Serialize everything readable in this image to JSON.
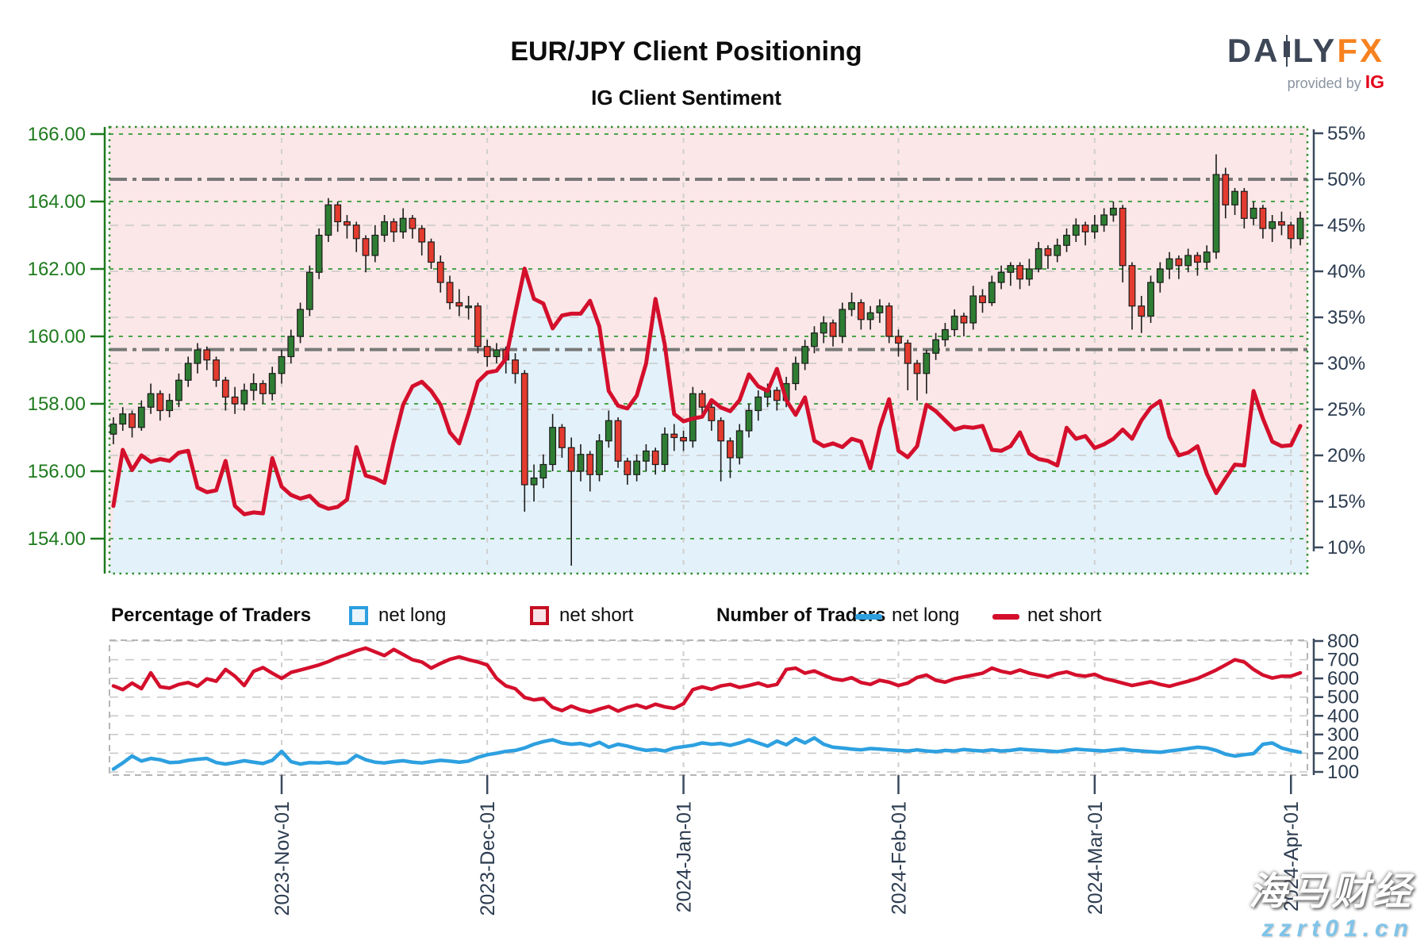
{
  "header": {
    "title": "EUR/JPY Client Positioning",
    "subtitle": "IG Client Sentiment",
    "logo": {
      "brand_part1": "DA",
      "brand_part2": "LY",
      "brand_part3": "FX",
      "provided_by": "provided by",
      "provider": "IG"
    }
  },
  "legend": {
    "percentage_title": "Percentage of Traders",
    "number_title": "Number of Traders",
    "net_long_label": "net long",
    "net_long_label2": "net long",
    "net_short_label": "net short",
    "net_short_label2": "net short"
  },
  "watermark": {
    "line1": "海马财经",
    "line2": "zzrt01.cn"
  },
  "colors": {
    "net_long_line": "#2da0e0",
    "net_short_line": "#d40f2c",
    "candle_up": "#2e7d33",
    "candle_down": "#e33b2f",
    "candle_outline": "#1c1c1c",
    "shade_net_long": "#e3f1fa",
    "shade_net_short": "#fbe7e7",
    "price_axis_green": "#1d7a1d",
    "grid_green": "#4aa44a",
    "pct_axis_navy": "#2c3c50",
    "grid_gray": "#c9c9c9",
    "month_grid": "#cfcfcf",
    "reference_dashdot": "#787878",
    "legend_long_fill": "#e9f4fb",
    "legend_short_fill": "#f8e3e7"
  },
  "chart_data": [
    {
      "type": "candlestick+line",
      "name": "price-with-client-sentiment",
      "title": "IG Client Sentiment",
      "price_axis": {
        "side": "left",
        "ticks": [
          166,
          164,
          162,
          160,
          158,
          156,
          154
        ]
      },
      "percent_axis": {
        "side": "right",
        "unit": "%",
        "ticks": [
          55,
          50,
          45,
          40,
          35,
          30,
          25,
          20,
          15,
          10
        ]
      },
      "reference_levels_percent": [
        50,
        31.5
      ],
      "month_labels": [
        "2023-Nov-01",
        "2023-Dec-01",
        "2024-Jan-01",
        "2024-Feb-01",
        "2024-Mar-01",
        "2024-Apr-01"
      ],
      "candles_ohlc": [
        [
          157.1,
          157.6,
          156.8,
          157.4
        ],
        [
          157.4,
          157.9,
          157.2,
          157.7
        ],
        [
          157.7,
          157.8,
          157.0,
          157.3
        ],
        [
          157.3,
          158.1,
          157.2,
          157.9
        ],
        [
          157.9,
          158.6,
          157.7,
          158.3
        ],
        [
          158.3,
          158.4,
          157.5,
          157.8
        ],
        [
          157.8,
          158.3,
          157.6,
          158.1
        ],
        [
          158.1,
          158.9,
          157.9,
          158.7
        ],
        [
          158.7,
          159.4,
          158.5,
          159.2
        ],
        [
          159.2,
          159.8,
          158.9,
          159.6
        ],
        [
          159.6,
          159.7,
          159.0,
          159.3
        ],
        [
          159.3,
          159.4,
          158.5,
          158.7
        ],
        [
          158.7,
          158.8,
          157.8,
          158.2
        ],
        [
          158.2,
          158.5,
          157.7,
          158.0
        ],
        [
          158.0,
          158.6,
          157.8,
          158.4
        ],
        [
          158.4,
          158.9,
          158.1,
          158.6
        ],
        [
          158.6,
          158.7,
          158.0,
          158.3
        ],
        [
          158.3,
          159.1,
          158.1,
          158.9
        ],
        [
          158.9,
          159.6,
          158.6,
          159.4
        ],
        [
          159.4,
          160.2,
          159.2,
          160.0
        ],
        [
          160.0,
          161.0,
          159.8,
          160.8
        ],
        [
          160.8,
          162.1,
          160.6,
          161.9
        ],
        [
          161.9,
          163.2,
          161.7,
          163.0
        ],
        [
          163.0,
          164.1,
          162.8,
          163.9
        ],
        [
          163.9,
          164.0,
          163.1,
          163.4
        ],
        [
          163.4,
          163.6,
          162.9,
          163.3
        ],
        [
          163.3,
          163.4,
          162.5,
          162.9
        ],
        [
          162.9,
          163.0,
          161.9,
          162.4
        ],
        [
          162.4,
          163.3,
          162.2,
          163.0
        ],
        [
          163.0,
          163.6,
          162.8,
          163.4
        ],
        [
          163.4,
          163.5,
          162.8,
          163.1
        ],
        [
          163.1,
          163.8,
          162.9,
          163.5
        ],
        [
          163.5,
          163.6,
          162.9,
          163.2
        ],
        [
          163.2,
          163.3,
          162.4,
          162.8
        ],
        [
          162.8,
          162.9,
          162.0,
          162.2
        ],
        [
          162.2,
          162.4,
          161.3,
          161.6
        ],
        [
          161.6,
          161.8,
          160.8,
          161.0
        ],
        [
          161.0,
          161.4,
          160.6,
          160.9
        ],
        [
          160.9,
          161.2,
          160.5,
          160.9
        ],
        [
          160.9,
          161.0,
          159.5,
          159.7
        ],
        [
          159.7,
          159.9,
          159.1,
          159.4
        ],
        [
          159.4,
          159.8,
          159.2,
          159.6
        ],
        [
          159.6,
          159.7,
          158.9,
          159.3
        ],
        [
          159.3,
          159.5,
          158.6,
          158.9
        ],
        [
          158.9,
          159.0,
          154.8,
          155.6
        ],
        [
          155.6,
          156.2,
          155.1,
          155.8
        ],
        [
          155.8,
          156.5,
          155.5,
          156.2
        ],
        [
          156.2,
          157.7,
          156.0,
          157.3
        ],
        [
          157.3,
          157.4,
          156.4,
          156.7
        ],
        [
          156.7,
          157.0,
          153.2,
          156.0
        ],
        [
          156.0,
          156.8,
          155.7,
          156.5
        ],
        [
          156.5,
          156.6,
          155.4,
          155.9
        ],
        [
          155.9,
          157.1,
          155.7,
          156.9
        ],
        [
          156.9,
          157.8,
          156.7,
          157.5
        ],
        [
          157.5,
          157.6,
          156.1,
          156.3
        ],
        [
          156.3,
          156.4,
          155.6,
          155.9
        ],
        [
          155.9,
          156.5,
          155.7,
          156.3
        ],
        [
          156.3,
          156.8,
          156.0,
          156.6
        ],
        [
          156.6,
          156.7,
          155.9,
          156.2
        ],
        [
          156.2,
          157.3,
          156.0,
          157.1
        ],
        [
          157.1,
          157.4,
          156.6,
          157.0
        ],
        [
          157.0,
          157.2,
          156.6,
          156.9
        ],
        [
          156.9,
          158.5,
          156.7,
          158.3
        ],
        [
          158.3,
          158.4,
          157.6,
          157.9
        ],
        [
          157.9,
          158.1,
          157.2,
          157.5
        ],
        [
          157.5,
          157.6,
          155.7,
          156.9
        ],
        [
          156.9,
          157.0,
          155.8,
          156.4
        ],
        [
          156.4,
          157.4,
          156.2,
          157.2
        ],
        [
          157.2,
          158.0,
          157.0,
          157.8
        ],
        [
          157.8,
          158.4,
          157.5,
          158.2
        ],
        [
          158.2,
          158.6,
          157.9,
          158.4
        ],
        [
          158.4,
          158.5,
          157.8,
          158.1
        ],
        [
          158.1,
          158.8,
          157.9,
          158.6
        ],
        [
          158.6,
          159.4,
          158.4,
          159.2
        ],
        [
          159.2,
          159.9,
          159.0,
          159.7
        ],
        [
          159.7,
          160.3,
          159.5,
          160.1
        ],
        [
          160.1,
          160.6,
          159.8,
          160.4
        ],
        [
          160.4,
          160.5,
          159.7,
          160.0
        ],
        [
          160.0,
          161.0,
          159.8,
          160.8
        ],
        [
          160.8,
          161.3,
          160.6,
          161.0
        ],
        [
          161.0,
          161.1,
          160.2,
          160.5
        ],
        [
          160.5,
          160.9,
          160.2,
          160.7
        ],
        [
          160.7,
          161.1,
          160.4,
          160.9
        ],
        [
          160.9,
          161.0,
          159.8,
          160.0
        ],
        [
          160.0,
          160.2,
          159.4,
          159.8
        ],
        [
          159.8,
          159.9,
          158.4,
          159.2
        ],
        [
          159.2,
          159.3,
          158.1,
          158.9
        ],
        [
          158.9,
          159.6,
          158.3,
          159.5
        ],
        [
          159.5,
          160.1,
          159.3,
          159.9
        ],
        [
          159.9,
          160.4,
          159.7,
          160.2
        ],
        [
          160.2,
          160.8,
          160.0,
          160.6
        ],
        [
          160.6,
          160.7,
          160.0,
          160.4
        ],
        [
          160.4,
          161.5,
          160.2,
          161.2
        ],
        [
          161.2,
          161.4,
          160.7,
          161.0
        ],
        [
          161.0,
          161.8,
          160.9,
          161.6
        ],
        [
          161.6,
          162.1,
          161.4,
          161.9
        ],
        [
          161.9,
          162.2,
          161.5,
          162.1
        ],
        [
          162.1,
          162.2,
          161.4,
          161.7
        ],
        [
          161.7,
          162.3,
          161.5,
          162.0
        ],
        [
          162.0,
          162.8,
          161.9,
          162.6
        ],
        [
          162.6,
          162.7,
          162.0,
          162.4
        ],
        [
          162.4,
          162.9,
          162.2,
          162.7
        ],
        [
          162.7,
          163.2,
          162.5,
          163.0
        ],
        [
          163.0,
          163.5,
          162.8,
          163.3
        ],
        [
          163.3,
          163.4,
          162.7,
          163.1
        ],
        [
          163.1,
          163.6,
          162.9,
          163.3
        ],
        [
          163.3,
          163.8,
          163.1,
          163.6
        ],
        [
          163.6,
          164.0,
          163.4,
          163.8
        ],
        [
          163.8,
          163.9,
          161.6,
          162.1
        ],
        [
          162.1,
          162.2,
          160.2,
          160.9
        ],
        [
          160.9,
          161.2,
          160.1,
          160.6
        ],
        [
          160.6,
          161.8,
          160.4,
          161.6
        ],
        [
          161.6,
          162.2,
          161.3,
          162.0
        ],
        [
          162.0,
          162.5,
          161.7,
          162.3
        ],
        [
          162.3,
          162.4,
          161.7,
          162.1
        ],
        [
          162.1,
          162.6,
          161.9,
          162.4
        ],
        [
          162.4,
          162.5,
          161.8,
          162.2
        ],
        [
          162.2,
          162.7,
          162.0,
          162.5
        ],
        [
          162.5,
          165.4,
          162.3,
          164.8
        ],
        [
          164.8,
          165.0,
          163.5,
          163.9
        ],
        [
          163.9,
          164.4,
          163.6,
          164.3
        ],
        [
          164.3,
          164.4,
          163.2,
          163.5
        ],
        [
          163.5,
          164.0,
          163.3,
          163.8
        ],
        [
          163.8,
          163.9,
          162.9,
          163.2
        ],
        [
          163.2,
          163.6,
          162.8,
          163.4
        ],
        [
          163.4,
          163.7,
          163.0,
          163.3
        ],
        [
          163.3,
          163.4,
          162.6,
          162.9
        ],
        [
          162.9,
          163.7,
          162.7,
          163.5
        ]
      ],
      "net_short_percent": [
        14.5,
        20.6,
        18.4,
        20,
        19.3,
        19.6,
        19.4,
        20.3,
        20.5,
        16.5,
        16,
        16.2,
        19.4,
        14.5,
        13.6,
        13.8,
        13.7,
        19.7,
        16.6,
        15.7,
        15.3,
        15.6,
        14.6,
        14.2,
        14.4,
        15.2,
        20.9,
        17.8,
        17.5,
        17,
        21.5,
        25.5,
        27.5,
        28,
        27,
        25.5,
        22.5,
        21.3,
        24.5,
        28,
        29,
        29.2,
        30.5,
        35.5,
        40.3,
        37,
        36.5,
        33.8,
        35.2,
        35.4,
        35.4,
        36.8,
        34,
        27,
        25.4,
        25.1,
        26.5,
        30,
        37,
        32,
        24.5,
        23.7,
        24,
        24.2,
        26,
        25.2,
        24.8,
        26,
        28.8,
        27.5,
        27,
        29.4,
        26,
        24.4,
        26.3,
        21.6,
        21,
        21.3,
        20.9,
        21.8,
        21.5,
        18.6,
        23,
        26.1,
        20.5,
        19.8,
        21,
        25.5,
        24.8,
        23.8,
        22.8,
        23.1,
        23,
        23.2,
        20.6,
        20.5,
        21,
        22.5,
        20.2,
        19.6,
        19.4,
        18.9,
        23,
        21.8,
        22.1,
        20.8,
        21.2,
        21.8,
        22.8,
        21.8,
        23.8,
        25.2,
        25.9,
        22,
        20,
        20.3,
        21,
        18,
        15.9,
        17.5,
        19,
        18.9,
        27,
        24,
        21.5,
        21,
        21.1,
        23.2
      ]
    },
    {
      "type": "line",
      "name": "number-of-traders",
      "value_axis": {
        "side": "right",
        "ticks": [
          800,
          700,
          600,
          500,
          400,
          300,
          200,
          100
        ]
      },
      "series": [
        {
          "name": "net long",
          "color_key": "net_long_line",
          "values": [
            115,
            148,
            185,
            158,
            172,
            165,
            150,
            152,
            162,
            168,
            172,
            150,
            142,
            150,
            160,
            152,
            145,
            162,
            210,
            155,
            142,
            150,
            148,
            152,
            145,
            150,
            188,
            165,
            152,
            148,
            155,
            160,
            152,
            148,
            155,
            162,
            158,
            152,
            158,
            178,
            192,
            200,
            210,
            215,
            228,
            248,
            262,
            272,
            255,
            248,
            252,
            240,
            258,
            232,
            248,
            238,
            225,
            215,
            220,
            212,
            228,
            235,
            242,
            255,
            248,
            252,
            242,
            255,
            272,
            255,
            238,
            265,
            245,
            278,
            255,
            282,
            248,
            232,
            228,
            222,
            218,
            225,
            222,
            218,
            215,
            212,
            218,
            212,
            208,
            215,
            212,
            220,
            215,
            212,
            218,
            212,
            215,
            222,
            218,
            215,
            212,
            208,
            215,
            222,
            218,
            215,
            212,
            218,
            222,
            215,
            212,
            208,
            205,
            212,
            218,
            225,
            232,
            228,
            215,
            195,
            185,
            192,
            198,
            248,
            255,
            228,
            215,
            205
          ]
        },
        {
          "name": "net short",
          "color_key": "net_short_line",
          "values": [
            560,
            540,
            575,
            545,
            630,
            555,
            548,
            568,
            578,
            558,
            598,
            585,
            648,
            612,
            562,
            638,
            658,
            628,
            600,
            632,
            645,
            658,
            672,
            690,
            712,
            728,
            748,
            762,
            742,
            722,
            755,
            728,
            700,
            688,
            655,
            680,
            702,
            715,
            700,
            688,
            672,
            600,
            560,
            545,
            498,
            485,
            492,
            445,
            428,
            452,
            432,
            420,
            436,
            450,
            425,
            445,
            458,
            442,
            462,
            448,
            440,
            465,
            540,
            555,
            542,
            560,
            568,
            552,
            562,
            575,
            558,
            568,
            648,
            655,
            628,
            640,
            618,
            598,
            590,
            604,
            578,
            568,
            590,
            580,
            562,
            575,
            605,
            618,
            590,
            580,
            598,
            608,
            618,
            628,
            655,
            638,
            628,
            645,
            628,
            618,
            608,
            625,
            635,
            618,
            612,
            622,
            600,
            588,
            575,
            562,
            572,
            582,
            568,
            558,
            572,
            585,
            600,
            622,
            645,
            672,
            700,
            688,
            648,
            618,
            602,
            612,
            612,
            630
          ]
        }
      ]
    }
  ]
}
